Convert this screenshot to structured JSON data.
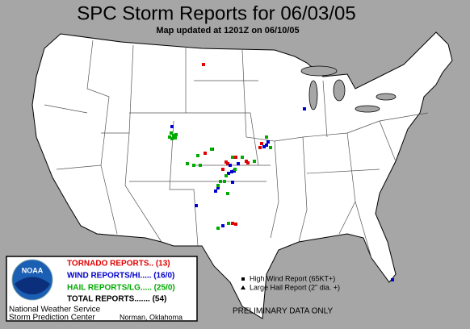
{
  "header": {
    "title": "SPC Storm Reports for 06/03/05",
    "subtitle": "Map updated at 1201Z on 06/10/05"
  },
  "legend": {
    "logo": "NOAA",
    "tornado": "TORNADO REPORTS.. (13)",
    "wind": "WIND REPORTS/HI..... (16/0)",
    "hail": "HAIL REPORTS/LG..... (25/0)",
    "total": "TOTAL REPORTS....... (54)"
  },
  "key": {
    "wind": "High Wind Report (65KT+)",
    "hail": "Large Hail Report (2\" dia. +)"
  },
  "footer": {
    "agency": "National Weather Service",
    "center": "Storm Prediction Center",
    "location": "Norman, Oklahoma",
    "note": "PRELIMINARY DATA ONLY"
  }
}
